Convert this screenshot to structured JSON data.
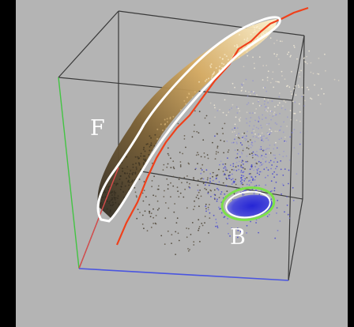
{
  "labels": {
    "cluster_f": "F",
    "cluster_b": "B"
  },
  "colors": {
    "panel_bg": "#b4b4b4",
    "frame": "#000000",
    "box_edge": "#3a3a3a",
    "axis_green": "#43c443",
    "axis_red": "#d94c4c",
    "axis_blue": "#4a55e0",
    "boundary_curve": "#f0401a",
    "outline_white": "#ffffff",
    "outline_green": "#7be04a",
    "points_light": "#ffe8b0",
    "points_dark": "#3a2f20",
    "points_blue": "#3535d0"
  }
}
